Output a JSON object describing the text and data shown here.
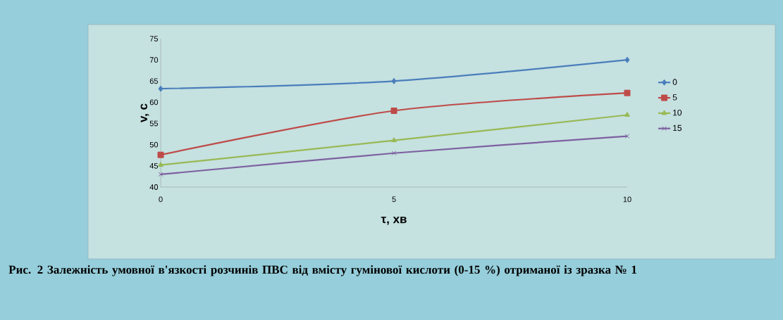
{
  "chart_data": {
    "type": "line",
    "xlabel": "τ, хв",
    "ylabel": "v, с",
    "x": [
      0,
      5,
      10
    ],
    "xlim": [
      0,
      10
    ],
    "xticks": [
      0,
      5,
      10
    ],
    "ylim": [
      40,
      75
    ],
    "yticks": [
      40,
      45,
      50,
      55,
      60,
      65,
      70,
      75
    ],
    "series": [
      {
        "name": "0",
        "color": "#4a7ebb",
        "marker": "diamond",
        "values": [
          63.2,
          65,
          70
        ]
      },
      {
        "name": "5",
        "color": "#be4b48",
        "marker": "square",
        "values": [
          47.6,
          58,
          62.2
        ]
      },
      {
        "name": "10",
        "color": "#98b954",
        "marker": "triangle",
        "values": [
          45.2,
          51,
          57
        ]
      },
      {
        "name": "15",
        "color": "#7d60a0",
        "marker": "cross",
        "values": [
          43,
          48,
          52
        ]
      }
    ],
    "legend": "right",
    "grid": false,
    "annotations": [
      "Рис. 2  Залежність умовної в'язкості розчинів ПВС від вмісту гумінової кислоти (0-15 %) отриманої із зразка № 1"
    ]
  }
}
